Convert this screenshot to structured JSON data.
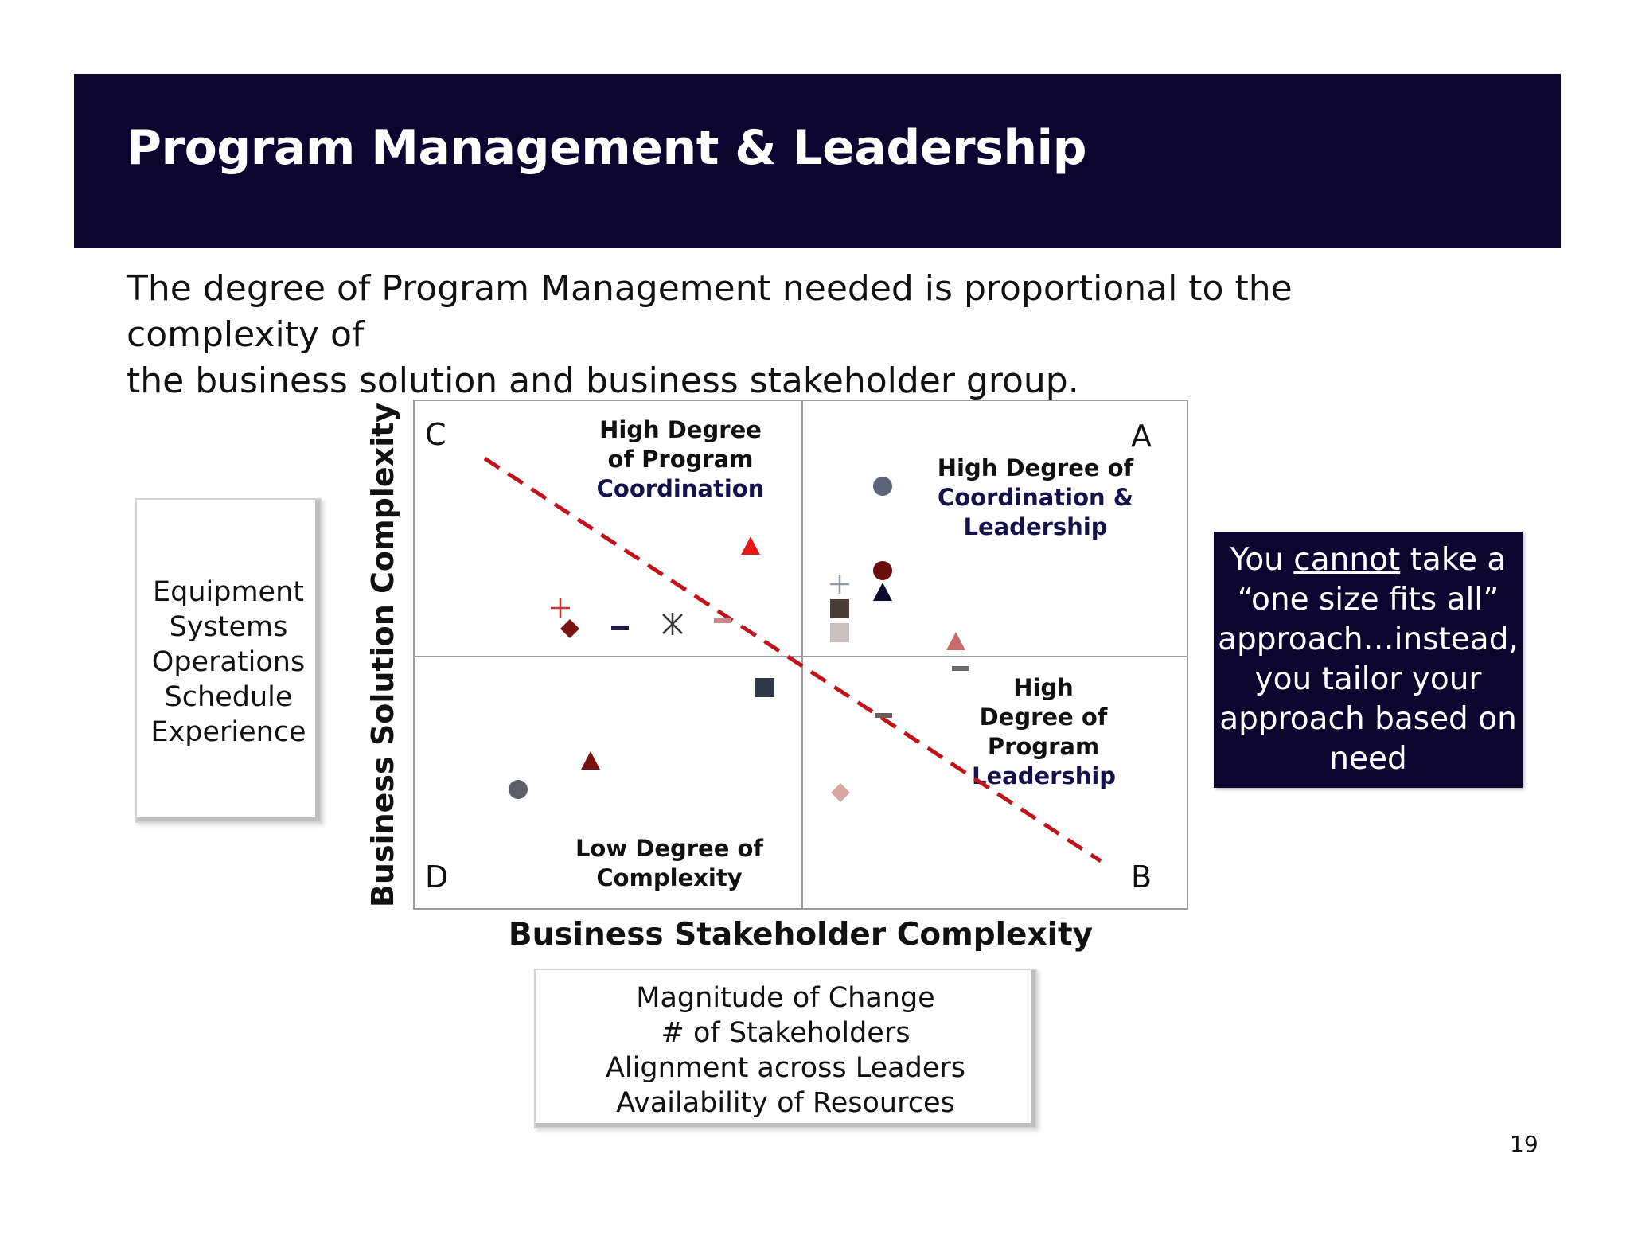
{
  "title": "Program Management & Leadership",
  "intro": {
    "line1": "The degree of Program Management needed is proportional to the complexity of",
    "line2": "the business solution and business stakeholder group."
  },
  "solution_factors": [
    "Equipment",
    "Systems",
    "Operations",
    "Schedule",
    "Experience"
  ],
  "stakeholder_factors": [
    "Magnitude of Change",
    "# of Stakeholders",
    "Alignment across Leaders",
    "Availability of Resources"
  ],
  "matrix": {
    "y_axis_label": "Business Solution Complexity",
    "x_axis_label": "Business Stakeholder Complexity",
    "quadrants": {
      "A": {
        "letter": "A",
        "label_lines": [
          "High Degree of",
          "Coordination &",
          "Leadership"
        ]
      },
      "B": {
        "letter": "B",
        "label_lines": [
          "High",
          "Degree of",
          "Program",
          "Leadership"
        ]
      },
      "C": {
        "letter": "C",
        "label_lines": [
          "High Degree",
          "of Program",
          "Coordination"
        ]
      },
      "D": {
        "letter": "D",
        "label_lines": [
          "Low Degree of",
          "Complexity"
        ]
      }
    }
  },
  "callout": {
    "part1": "You ",
    "underlined": "cannot",
    "part2": " take a “one size fits all” approach…instead, you tailor your approach based on need"
  },
  "page_number": "19",
  "colors": {
    "banner": "#0b0530",
    "divider_line": "#c0141c",
    "accent_text": "#14124a"
  },
  "markers": [
    {
      "shape": "circle",
      "color": "#5b6478"
    },
    {
      "shape": "circle",
      "color": "#6b0c0c"
    },
    {
      "shape": "triangle",
      "color": "#0b0b30"
    },
    {
      "shape": "triangle",
      "color": "#e41818"
    },
    {
      "shape": "triangle",
      "color": "#7a1010"
    },
    {
      "shape": "triangle",
      "color": "#c96a6a"
    },
    {
      "shape": "square",
      "color": "#4a3c36"
    },
    {
      "shape": "square",
      "color": "#c8c0bc"
    },
    {
      "shape": "square",
      "color": "#2f3844"
    },
    {
      "shape": "diamond",
      "color": "#7a1414"
    },
    {
      "shape": "diamond",
      "color": "#d8a4a4"
    },
    {
      "shape": "plus",
      "color": "#cc3030"
    },
    {
      "shape": "plus",
      "color": "#9098aa"
    },
    {
      "shape": "dash",
      "color": "#1c1c44"
    },
    {
      "shape": "dash",
      "color": "#c88888"
    },
    {
      "shape": "dash",
      "color": "#6a6a6a"
    },
    {
      "shape": "dash",
      "color": "#6a5a5a"
    },
    {
      "shape": "asterisk",
      "color": "#333333"
    },
    {
      "shape": "circle",
      "color": "#5e5e68"
    }
  ]
}
